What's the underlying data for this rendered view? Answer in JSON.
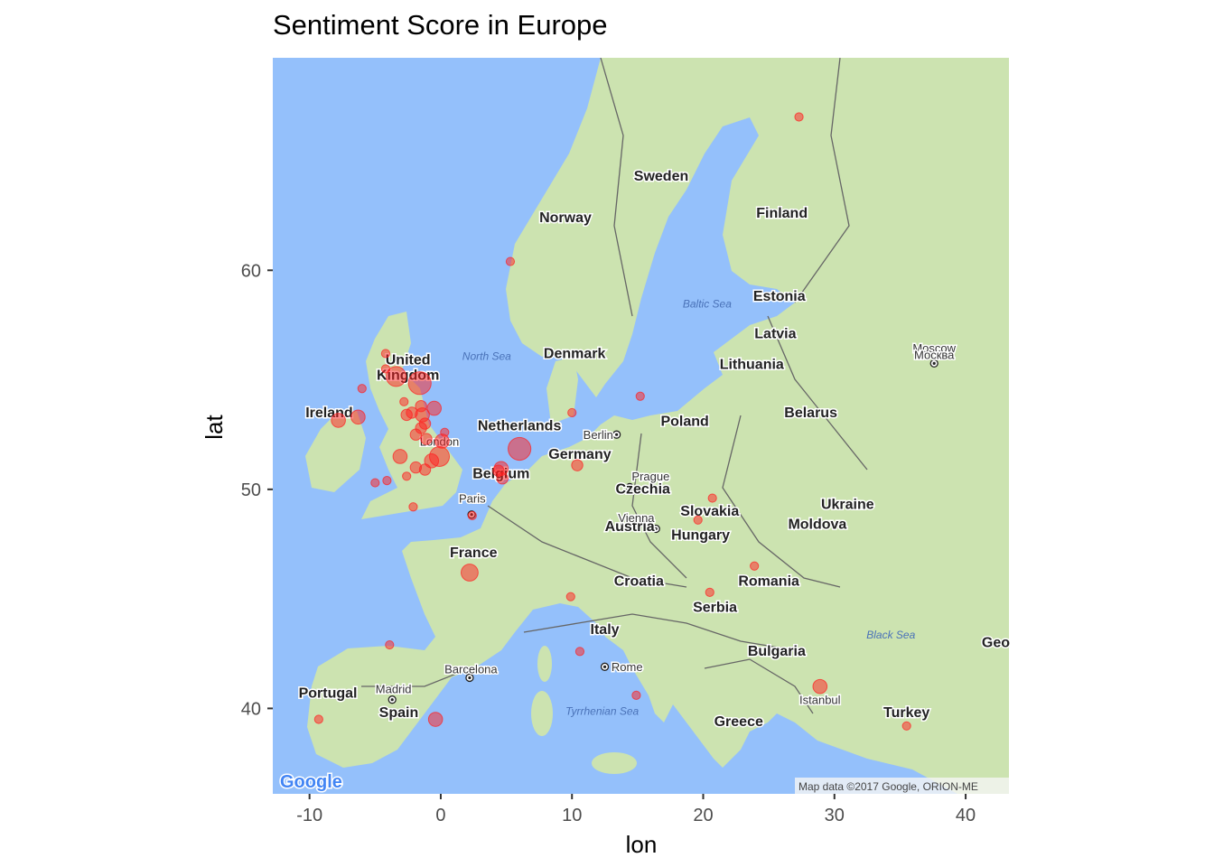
{
  "title": "Sentiment Score in Europe",
  "x_axis": {
    "title": "lon",
    "ticks": [
      "-10",
      "0",
      "10",
      "20",
      "30",
      "40"
    ],
    "tick_values": [
      -10,
      0,
      10,
      20,
      30,
      40
    ]
  },
  "y_axis": {
    "title": "lat",
    "ticks": [
      "40",
      "50",
      "60"
    ],
    "tick_values": [
      40,
      50,
      60
    ]
  },
  "colors": {
    "ocean": "#94c0fb",
    "land": "#cce3b0",
    "point": "#ff2020",
    "border": "#666666"
  },
  "basemap": {
    "countries": [
      {
        "label": "Sweden",
        "lon": 16.8,
        "lat": 64.1
      },
      {
        "label": "Norway",
        "lon": 9.5,
        "lat": 62.2
      },
      {
        "label": "Finland",
        "lon": 26.0,
        "lat": 62.4
      },
      {
        "label": "Estonia",
        "lon": 25.8,
        "lat": 58.6
      },
      {
        "label": "Latvia",
        "lon": 25.5,
        "lat": 56.9
      },
      {
        "label": "Lithuania",
        "lon": 23.7,
        "lat": 55.5
      },
      {
        "label": "Denmark",
        "lon": 10.2,
        "lat": 56.0
      },
      {
        "label": "United",
        "lon": -2.5,
        "lat": 55.7
      },
      {
        "label": "Kingdom",
        "lon": -2.5,
        "lat": 55.0
      },
      {
        "label": "Ireland",
        "lon": -8.5,
        "lat": 53.3
      },
      {
        "label": "Netherlands",
        "lon": 6.0,
        "lat": 52.7
      },
      {
        "label": "Germany",
        "lon": 10.6,
        "lat": 51.4
      },
      {
        "label": "Poland",
        "lon": 18.6,
        "lat": 52.9
      },
      {
        "label": "Belarus",
        "lon": 28.2,
        "lat": 53.3
      },
      {
        "label": "Belgium",
        "lon": 4.6,
        "lat": 50.5
      },
      {
        "label": "France",
        "lon": 2.5,
        "lat": 46.9
      },
      {
        "label": "Czechia",
        "lon": 15.4,
        "lat": 49.8
      },
      {
        "label": "Slovakia",
        "lon": 20.5,
        "lat": 48.8
      },
      {
        "label": "Austria",
        "lon": 14.4,
        "lat": 48.1
      },
      {
        "label": "Hungary",
        "lon": 19.8,
        "lat": 47.7
      },
      {
        "label": "Ukraine",
        "lon": 31.0,
        "lat": 49.1
      },
      {
        "label": "Moldova",
        "lon": 28.7,
        "lat": 48.2
      },
      {
        "label": "Romania",
        "lon": 25.0,
        "lat": 45.6
      },
      {
        "label": "Croatia",
        "lon": 15.1,
        "lat": 45.6
      },
      {
        "label": "Serbia",
        "lon": 20.9,
        "lat": 44.4
      },
      {
        "label": "Italy",
        "lon": 12.5,
        "lat": 43.4
      },
      {
        "label": "Bulgaria",
        "lon": 25.6,
        "lat": 42.4
      },
      {
        "label": "Portugal",
        "lon": -8.6,
        "lat": 40.5
      },
      {
        "label": "Spain",
        "lon": -3.2,
        "lat": 39.6
      },
      {
        "label": "Greece",
        "lon": 22.7,
        "lat": 39.2
      },
      {
        "label": "Turkey",
        "lon": 35.5,
        "lat": 39.6
      },
      {
        "label": "Geo",
        "lon": 42.3,
        "lat": 42.8
      }
    ],
    "cities": [
      {
        "label": "Moscow",
        "lon": 37.6,
        "lat": 56.25
      },
      {
        "label": "Москва",
        "lon": 37.6,
        "lat": 55.95
      },
      {
        "label": "Berlin",
        "lon": 12.0,
        "lat": 52.3
      },
      {
        "label": "London",
        "lon": -0.1,
        "lat": 52.0
      },
      {
        "label": "Prague",
        "lon": 16.0,
        "lat": 50.4
      },
      {
        "label": "Paris",
        "lon": 2.4,
        "lat": 49.4
      },
      {
        "label": "Vienna",
        "lon": 14.9,
        "lat": 48.5
      },
      {
        "label": "Barcelona",
        "lon": 2.3,
        "lat": 41.6
      },
      {
        "label": "Madrid",
        "lon": -3.6,
        "lat": 40.7
      },
      {
        "label": "Rome",
        "lon": 14.2,
        "lat": 41.7
      },
      {
        "label": "Istanbul",
        "lon": 28.9,
        "lat": 40.2
      }
    ],
    "seas": [
      {
        "label": "North Sea",
        "lon": 3.5,
        "lat": 55.9
      },
      {
        "label": "Baltic Sea",
        "lon": 20.3,
        "lat": 58.3
      },
      {
        "label": "Black Sea",
        "lon": 34.3,
        "lat": 43.2
      },
      {
        "label": "Tyrrhenian Sea",
        "lon": 12.3,
        "lat": 39.7
      }
    ],
    "capitals": [
      {
        "lon": 37.6,
        "lat": 55.75
      },
      {
        "lon": 13.4,
        "lat": 52.5
      },
      {
        "lon": 14.4,
        "lat": 50.1
      },
      {
        "lon": 2.35,
        "lat": 48.85
      },
      {
        "lon": 16.4,
        "lat": 48.2
      },
      {
        "lon": 12.5,
        "lat": 41.9
      },
      {
        "lon": -3.7,
        "lat": 40.4
      },
      {
        "lon": 2.2,
        "lat": 41.4
      }
    ],
    "google_logo": "Google",
    "attribution": "Map data ©2017 Google, ORION-ME"
  },
  "chart_data": {
    "type": "scatter",
    "title": "Sentiment Score in Europe",
    "xlabel": "lon",
    "ylabel": "lat",
    "xlim": [
      -12.8,
      43.3
    ],
    "ylim": [
      36.1,
      69.7
    ],
    "point_color": "#ff2020",
    "points": [
      {
        "lon": 27.3,
        "lat": 67.0,
        "size": 1
      },
      {
        "lon": 5.3,
        "lat": 60.4,
        "size": 1
      },
      {
        "lon": -4.2,
        "lat": 56.2,
        "size": 1
      },
      {
        "lon": -4.2,
        "lat": 55.5,
        "size": 1
      },
      {
        "lon": -3.4,
        "lat": 55.15,
        "size": 5
      },
      {
        "lon": -1.6,
        "lat": 54.85,
        "size": 6
      },
      {
        "lon": -6.0,
        "lat": 54.6,
        "size": 1
      },
      {
        "lon": -2.8,
        "lat": 54.0,
        "size": 1
      },
      {
        "lon": -6.3,
        "lat": 53.3,
        "size": 3
      },
      {
        "lon": -7.8,
        "lat": 53.15,
        "size": 3
      },
      {
        "lon": -1.5,
        "lat": 53.8,
        "size": 2
      },
      {
        "lon": -0.5,
        "lat": 53.7,
        "size": 3
      },
      {
        "lon": -2.2,
        "lat": 53.5,
        "size": 2
      },
      {
        "lon": -1.4,
        "lat": 53.4,
        "size": 3
      },
      {
        "lon": -2.6,
        "lat": 53.4,
        "size": 2
      },
      {
        "lon": -1.2,
        "lat": 53.0,
        "size": 2
      },
      {
        "lon": -1.5,
        "lat": 52.8,
        "size": 2
      },
      {
        "lon": 0.3,
        "lat": 52.6,
        "size": 1
      },
      {
        "lon": -1.9,
        "lat": 52.5,
        "size": 2
      },
      {
        "lon": -1.1,
        "lat": 52.3,
        "size": 2
      },
      {
        "lon": 0.1,
        "lat": 52.2,
        "size": 3
      },
      {
        "lon": -3.1,
        "lat": 51.5,
        "size": 3
      },
      {
        "lon": -0.1,
        "lat": 51.5,
        "size": 5
      },
      {
        "lon": -0.7,
        "lat": 51.3,
        "size": 3
      },
      {
        "lon": -1.9,
        "lat": 51.0,
        "size": 2
      },
      {
        "lon": -1.2,
        "lat": 50.9,
        "size": 2
      },
      {
        "lon": -2.6,
        "lat": 50.6,
        "size": 1
      },
      {
        "lon": -4.1,
        "lat": 50.4,
        "size": 1
      },
      {
        "lon": -5.0,
        "lat": 50.3,
        "size": 1
      },
      {
        "lon": -2.1,
        "lat": 49.2,
        "size": 1
      },
      {
        "lon": 6.0,
        "lat": 51.85,
        "size": 6
      },
      {
        "lon": 4.6,
        "lat": 50.95,
        "size": 3
      },
      {
        "lon": 4.4,
        "lat": 50.85,
        "size": 2
      },
      {
        "lon": 4.7,
        "lat": 50.5,
        "size": 2
      },
      {
        "lon": 10.4,
        "lat": 51.1,
        "size": 2
      },
      {
        "lon": 10.0,
        "lat": 53.5,
        "size": 1
      },
      {
        "lon": 15.2,
        "lat": 54.25,
        "size": 1
      },
      {
        "lon": 2.4,
        "lat": 48.8,
        "size": 1
      },
      {
        "lon": 2.2,
        "lat": 46.2,
        "size": 4
      },
      {
        "lon": 9.9,
        "lat": 45.1,
        "size": 1
      },
      {
        "lon": 10.6,
        "lat": 42.6,
        "size": 1
      },
      {
        "lon": 14.9,
        "lat": 40.6,
        "size": 1
      },
      {
        "lon": -3.9,
        "lat": 42.9,
        "size": 1
      },
      {
        "lon": -0.4,
        "lat": 39.5,
        "size": 3
      },
      {
        "lon": -9.3,
        "lat": 39.5,
        "size": 1
      },
      {
        "lon": 28.9,
        "lat": 41.0,
        "size": 3
      },
      {
        "lon": 35.5,
        "lat": 39.2,
        "size": 1
      },
      {
        "lon": 20.7,
        "lat": 49.6,
        "size": 1
      },
      {
        "lon": 19.6,
        "lat": 48.6,
        "size": 1
      },
      {
        "lon": 20.5,
        "lat": 45.3,
        "size": 1
      },
      {
        "lon": 23.9,
        "lat": 46.5,
        "size": 1
      }
    ]
  }
}
